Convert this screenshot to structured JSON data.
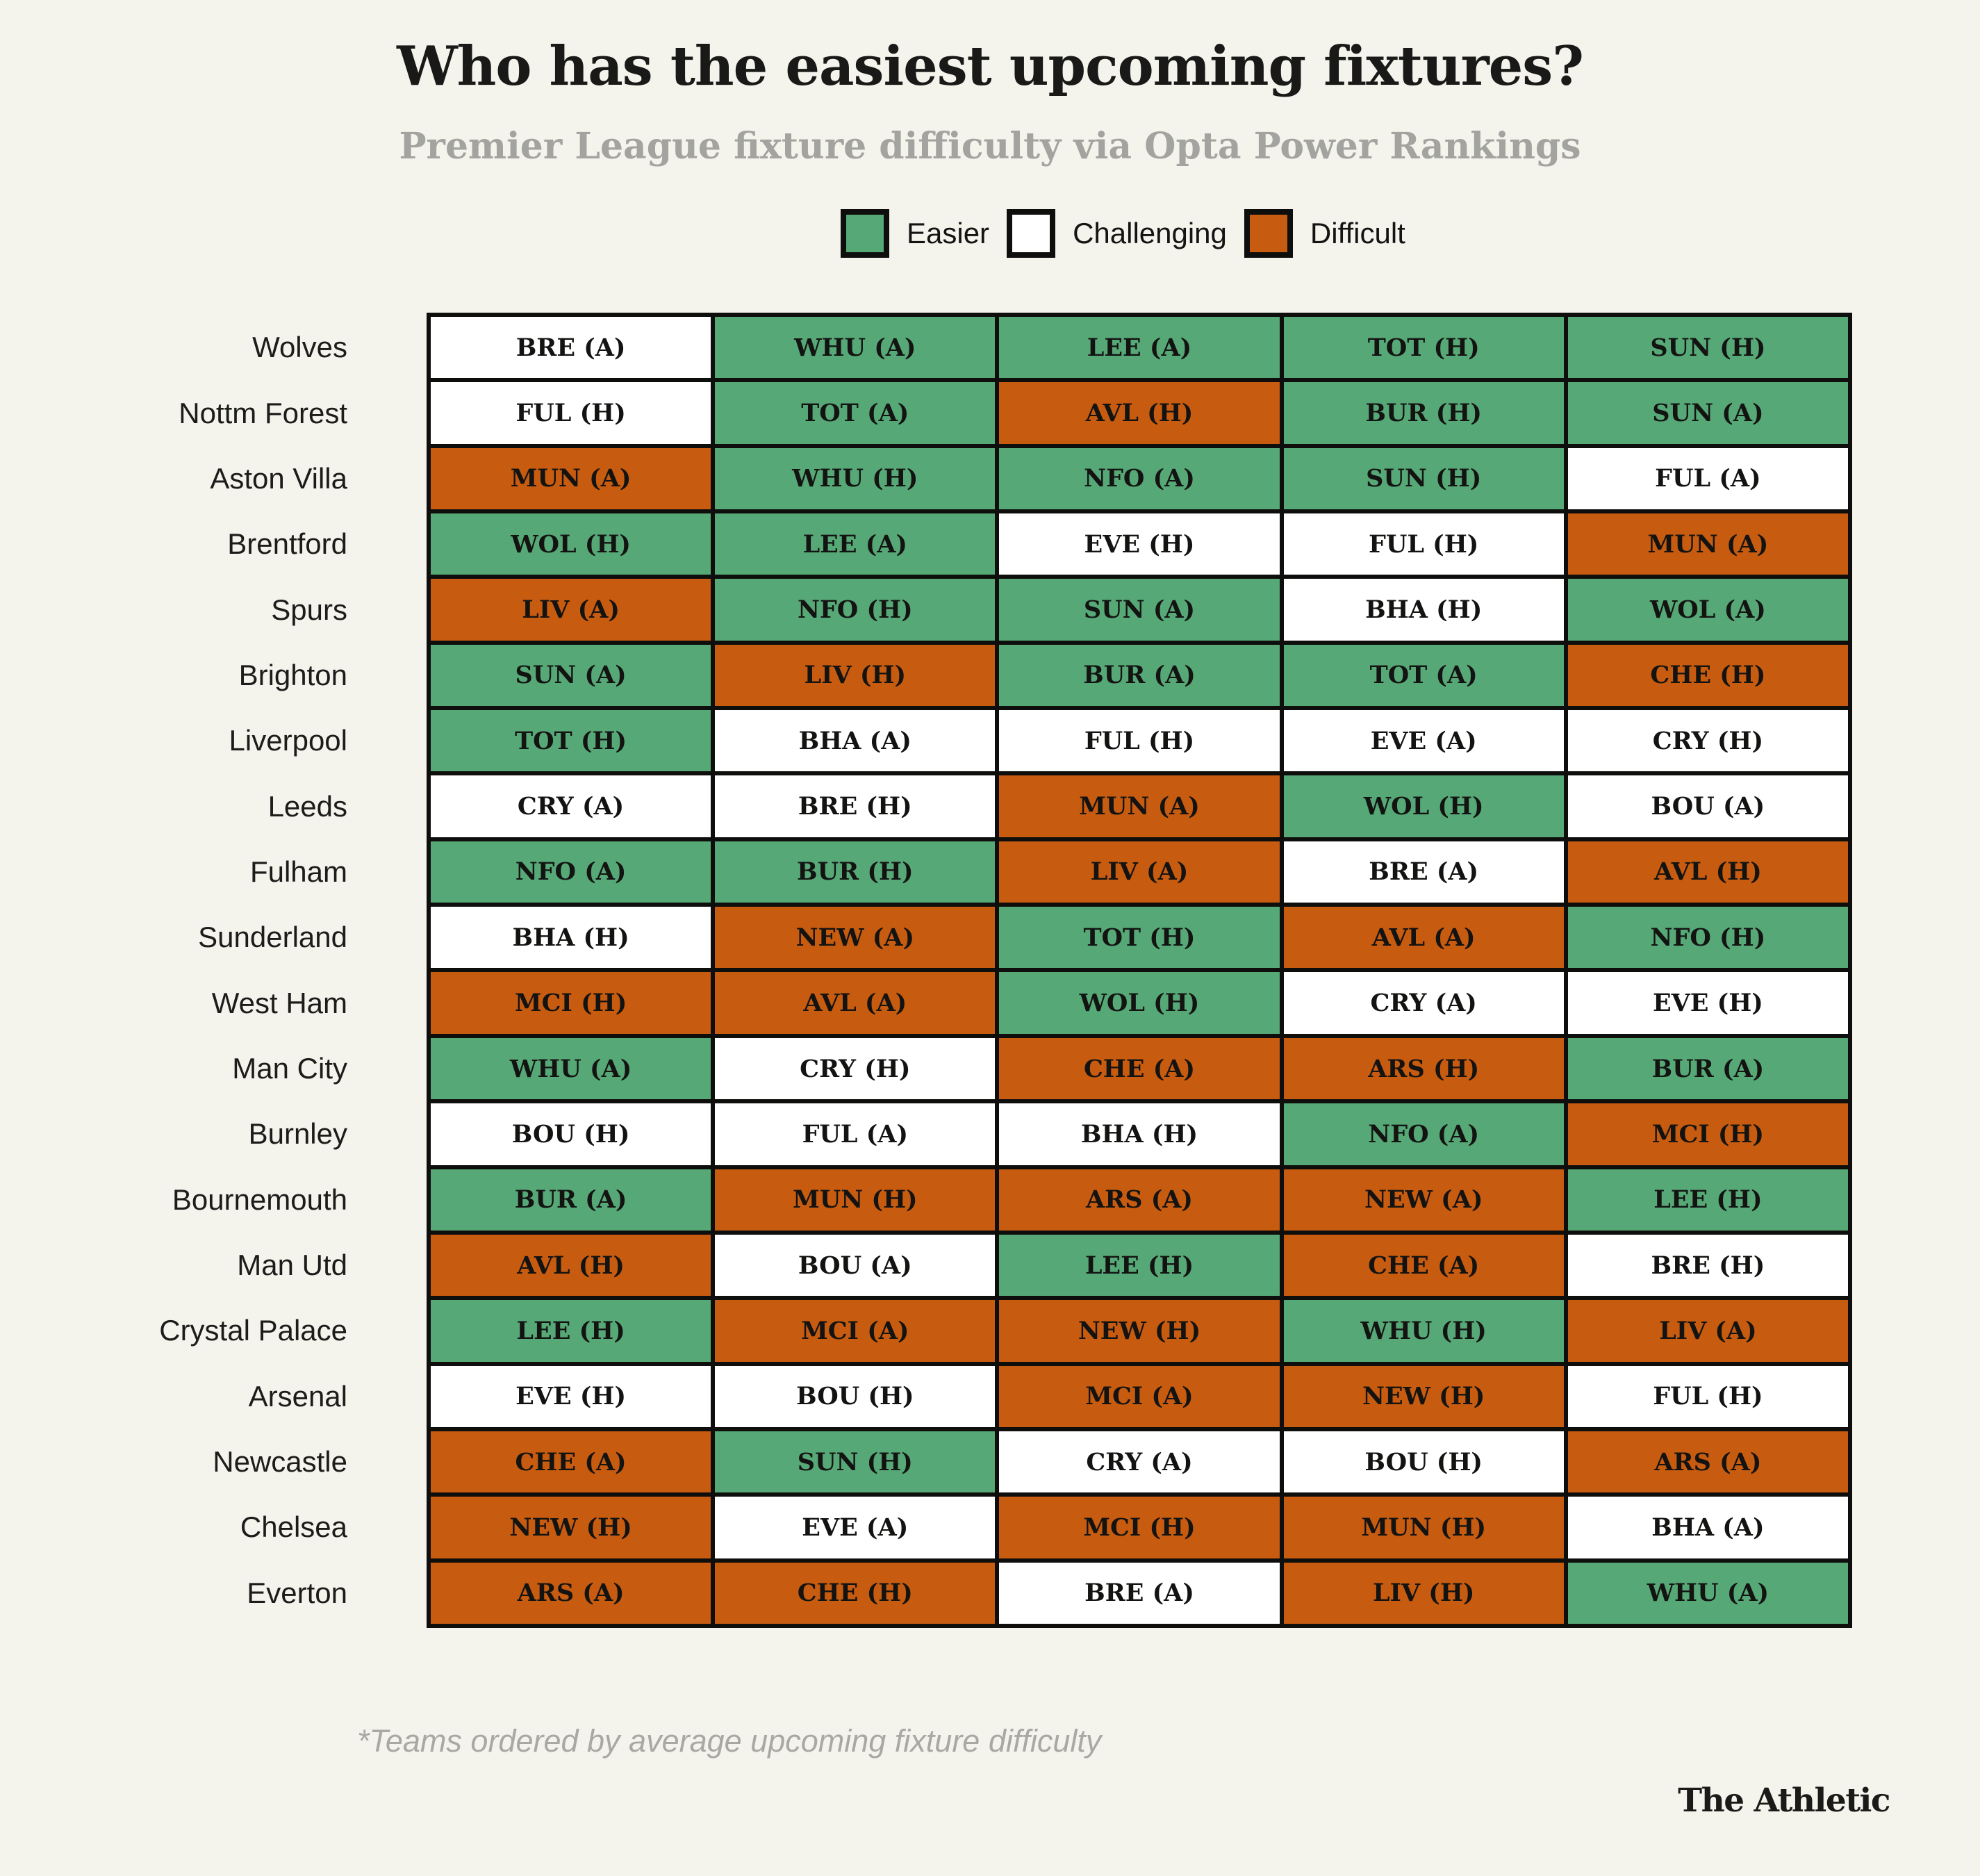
{
  "title": "Who has the easiest upcoming fixtures?",
  "subtitle": "Premier League fixture difficulty via Opta Power Rankings",
  "legend": [
    {
      "label": "Easier",
      "key": "easier"
    },
    {
      "label": "Challenging",
      "key": "challenging"
    },
    {
      "label": "Difficult",
      "key": "difficult"
    }
  ],
  "colors": {
    "easier": "#57a877",
    "challenging": "#ffffff",
    "difficult": "#c75b10",
    "background": "#f4f3ec",
    "border": "#0e0e0d"
  },
  "footnote": "*Teams ordered by average upcoming fixture difficulty",
  "branding": "The Athletic",
  "chart_data": {
    "type": "heatmap",
    "title": "Who has the easiest upcoming fixtures?",
    "subtitle": "Premier League fixture difficulty via Opta Power Rankings",
    "legend_entries": [
      "Easier",
      "Challenging",
      "Difficult"
    ],
    "legend_position": "top",
    "columns_per_row": 5,
    "note": "*Teams ordered by average upcoming fixture difficulty",
    "rows": [
      {
        "team": "Wolves",
        "fixtures": [
          {
            "label": "BRE (A)",
            "level": "challenging"
          },
          {
            "label": "WHU (A)",
            "level": "easier"
          },
          {
            "label": "LEE (A)",
            "level": "easier"
          },
          {
            "label": "TOT (H)",
            "level": "easier"
          },
          {
            "label": "SUN (H)",
            "level": "easier"
          }
        ]
      },
      {
        "team": "Nottm Forest",
        "fixtures": [
          {
            "label": "FUL (H)",
            "level": "challenging"
          },
          {
            "label": "TOT (A)",
            "level": "easier"
          },
          {
            "label": "AVL (H)",
            "level": "difficult"
          },
          {
            "label": "BUR (H)",
            "level": "easier"
          },
          {
            "label": "SUN (A)",
            "level": "easier"
          }
        ]
      },
      {
        "team": "Aston Villa",
        "fixtures": [
          {
            "label": "MUN (A)",
            "level": "difficult"
          },
          {
            "label": "WHU (H)",
            "level": "easier"
          },
          {
            "label": "NFO (A)",
            "level": "easier"
          },
          {
            "label": "SUN (H)",
            "level": "easier"
          },
          {
            "label": "FUL (A)",
            "level": "challenging"
          }
        ]
      },
      {
        "team": "Brentford",
        "fixtures": [
          {
            "label": "WOL (H)",
            "level": "easier"
          },
          {
            "label": "LEE (A)",
            "level": "easier"
          },
          {
            "label": "EVE (H)",
            "level": "challenging"
          },
          {
            "label": "FUL (H)",
            "level": "challenging"
          },
          {
            "label": "MUN (A)",
            "level": "difficult"
          }
        ]
      },
      {
        "team": "Spurs",
        "fixtures": [
          {
            "label": "LIV (A)",
            "level": "difficult"
          },
          {
            "label": "NFO (H)",
            "level": "easier"
          },
          {
            "label": "SUN (A)",
            "level": "easier"
          },
          {
            "label": "BHA (H)",
            "level": "challenging"
          },
          {
            "label": "WOL (A)",
            "level": "easier"
          }
        ]
      },
      {
        "team": "Brighton",
        "fixtures": [
          {
            "label": "SUN (A)",
            "level": "easier"
          },
          {
            "label": "LIV (H)",
            "level": "difficult"
          },
          {
            "label": "BUR (A)",
            "level": "easier"
          },
          {
            "label": "TOT (A)",
            "level": "easier"
          },
          {
            "label": "CHE (H)",
            "level": "difficult"
          }
        ]
      },
      {
        "team": "Liverpool",
        "fixtures": [
          {
            "label": "TOT (H)",
            "level": "easier"
          },
          {
            "label": "BHA (A)",
            "level": "challenging"
          },
          {
            "label": "FUL (H)",
            "level": "challenging"
          },
          {
            "label": "EVE (A)",
            "level": "challenging"
          },
          {
            "label": "CRY (H)",
            "level": "challenging"
          }
        ]
      },
      {
        "team": "Leeds",
        "fixtures": [
          {
            "label": "CRY (A)",
            "level": "challenging"
          },
          {
            "label": "BRE (H)",
            "level": "challenging"
          },
          {
            "label": "MUN (A)",
            "level": "difficult"
          },
          {
            "label": "WOL (H)",
            "level": "easier"
          },
          {
            "label": "BOU (A)",
            "level": "challenging"
          }
        ]
      },
      {
        "team": "Fulham",
        "fixtures": [
          {
            "label": "NFO (A)",
            "level": "easier"
          },
          {
            "label": "BUR (H)",
            "level": "easier"
          },
          {
            "label": "LIV (A)",
            "level": "difficult"
          },
          {
            "label": "BRE (A)",
            "level": "challenging"
          },
          {
            "label": "AVL (H)",
            "level": "difficult"
          }
        ]
      },
      {
        "team": "Sunderland",
        "fixtures": [
          {
            "label": "BHA (H)",
            "level": "challenging"
          },
          {
            "label": "NEW (A)",
            "level": "difficult"
          },
          {
            "label": "TOT (H)",
            "level": "easier"
          },
          {
            "label": "AVL (A)",
            "level": "difficult"
          },
          {
            "label": "NFO (H)",
            "level": "easier"
          }
        ]
      },
      {
        "team": "West Ham",
        "fixtures": [
          {
            "label": "MCI (H)",
            "level": "difficult"
          },
          {
            "label": "AVL (A)",
            "level": "difficult"
          },
          {
            "label": "WOL (H)",
            "level": "easier"
          },
          {
            "label": "CRY (A)",
            "level": "challenging"
          },
          {
            "label": "EVE (H)",
            "level": "challenging"
          }
        ]
      },
      {
        "team": "Man City",
        "fixtures": [
          {
            "label": "WHU (A)",
            "level": "easier"
          },
          {
            "label": "CRY (H)",
            "level": "challenging"
          },
          {
            "label": "CHE (A)",
            "level": "difficult"
          },
          {
            "label": "ARS (H)",
            "level": "difficult"
          },
          {
            "label": "BUR (A)",
            "level": "easier"
          }
        ]
      },
      {
        "team": "Burnley",
        "fixtures": [
          {
            "label": "BOU (H)",
            "level": "challenging"
          },
          {
            "label": "FUL (A)",
            "level": "challenging"
          },
          {
            "label": "BHA (H)",
            "level": "challenging"
          },
          {
            "label": "NFO (A)",
            "level": "easier"
          },
          {
            "label": "MCI (H)",
            "level": "difficult"
          }
        ]
      },
      {
        "team": "Bournemouth",
        "fixtures": [
          {
            "label": "BUR (A)",
            "level": "easier"
          },
          {
            "label": "MUN (H)",
            "level": "difficult"
          },
          {
            "label": "ARS (A)",
            "level": "difficult"
          },
          {
            "label": "NEW (A)",
            "level": "difficult"
          },
          {
            "label": "LEE (H)",
            "level": "easier"
          }
        ]
      },
      {
        "team": "Man Utd",
        "fixtures": [
          {
            "label": "AVL (H)",
            "level": "difficult"
          },
          {
            "label": "BOU (A)",
            "level": "challenging"
          },
          {
            "label": "LEE (H)",
            "level": "easier"
          },
          {
            "label": "CHE (A)",
            "level": "difficult"
          },
          {
            "label": "BRE (H)",
            "level": "challenging"
          }
        ]
      },
      {
        "team": "Crystal Palace",
        "fixtures": [
          {
            "label": "LEE (H)",
            "level": "easier"
          },
          {
            "label": "MCI (A)",
            "level": "difficult"
          },
          {
            "label": "NEW (H)",
            "level": "difficult"
          },
          {
            "label": "WHU (H)",
            "level": "easier"
          },
          {
            "label": "LIV (A)",
            "level": "difficult"
          }
        ]
      },
      {
        "team": "Arsenal",
        "fixtures": [
          {
            "label": "EVE (H)",
            "level": "challenging"
          },
          {
            "label": "BOU (H)",
            "level": "challenging"
          },
          {
            "label": "MCI (A)",
            "level": "difficult"
          },
          {
            "label": "NEW (H)",
            "level": "difficult"
          },
          {
            "label": "FUL (H)",
            "level": "challenging"
          }
        ]
      },
      {
        "team": "Newcastle",
        "fixtures": [
          {
            "label": "CHE (A)",
            "level": "difficult"
          },
          {
            "label": "SUN (H)",
            "level": "easier"
          },
          {
            "label": "CRY (A)",
            "level": "challenging"
          },
          {
            "label": "BOU (H)",
            "level": "challenging"
          },
          {
            "label": "ARS (A)",
            "level": "difficult"
          }
        ]
      },
      {
        "team": "Chelsea",
        "fixtures": [
          {
            "label": "NEW (H)",
            "level": "difficult"
          },
          {
            "label": "EVE (A)",
            "level": "challenging"
          },
          {
            "label": "MCI (H)",
            "level": "difficult"
          },
          {
            "label": "MUN (H)",
            "level": "difficult"
          },
          {
            "label": "BHA (A)",
            "level": "challenging"
          }
        ]
      },
      {
        "team": "Everton",
        "fixtures": [
          {
            "label": "ARS (A)",
            "level": "difficult"
          },
          {
            "label": "CHE (H)",
            "level": "difficult"
          },
          {
            "label": "BRE (A)",
            "level": "challenging"
          },
          {
            "label": "LIV (H)",
            "level": "difficult"
          },
          {
            "label": "WHU (A)",
            "level": "easier"
          }
        ]
      }
    ]
  }
}
